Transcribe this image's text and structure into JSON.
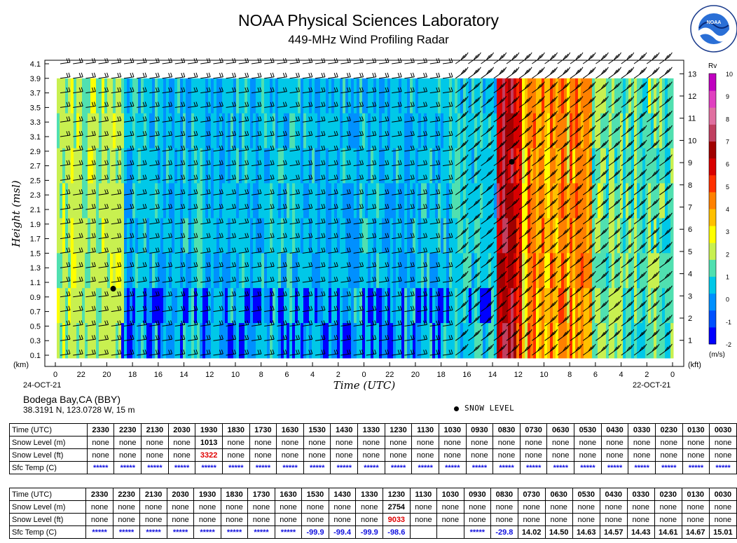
{
  "header": {
    "title": "NOAA Physical Sciences Laboratory",
    "subtitle": "449-MHz Wind Profiling Radar",
    "logo_text": "NATIONAL OCEANIC AND ATMOSPHERIC ADMINISTRATION · U.S. DEPARTMENT OF COMMERCE · NOAA"
  },
  "chart_data": {
    "type": "heatmap",
    "xlabel": "Time (UTC)",
    "ylabel": "Height (msl)",
    "y_unit_left": "(km)",
    "y_unit_right": "(kft)",
    "x_ticks": [
      "0",
      "22",
      "20",
      "18",
      "16",
      "14",
      "12",
      "10",
      "8",
      "6",
      "4",
      "2",
      "0",
      "22",
      "20",
      "18",
      "16",
      "14",
      "12",
      "10",
      "8",
      "6",
      "4",
      "2",
      "0"
    ],
    "date_left": "24-OCT-21",
    "date_right": "22-OCT-21",
    "y_ticks_km": [
      "0.1",
      "0.3",
      "0.5",
      "0.7",
      "0.9",
      "1.1",
      "1.3",
      "1.5",
      "1.7",
      "1.9",
      "2.1",
      "2.3",
      "2.5",
      "2.7",
      "2.9",
      "3.1",
      "3.3",
      "3.5",
      "3.7",
      "3.9",
      "4.1"
    ],
    "y_ticks_kft": [
      "1",
      "2",
      "3",
      "4",
      "5",
      "6",
      "7",
      "8",
      "9",
      "10",
      "11",
      "12",
      "13"
    ],
    "colorbar": {
      "title": "Rv",
      "unit": "(m/s)",
      "ticks": [
        "-2",
        "-1",
        "0",
        "1",
        "2",
        "3",
        "4",
        "5",
        "6",
        "7",
        "8",
        "9",
        "10"
      ],
      "colors": [
        "#0000ff",
        "#0050ff",
        "#0090ff",
        "#00c8e8",
        "#50e0b0",
        "#c8f050",
        "#ffff00",
        "#ffc000",
        "#ff8000",
        "#ff3000",
        "#d80000",
        "#a00000",
        "#c04060",
        "#e070a0",
        "#e040c0",
        "#c000c0"
      ]
    },
    "snow_level_points": [
      {
        "time": "1930",
        "date": "23-OCT-21",
        "height_km": 1.013
      },
      {
        "time": "1230",
        "date": "22-OCT-21",
        "height_km": 2.754
      }
    ],
    "regions": [
      {
        "label": "background",
        "rv": 0
      },
      {
        "label": "rain-band-left",
        "rv": 2
      },
      {
        "label": "rain-band-right",
        "rv": 5
      }
    ]
  },
  "station": {
    "name": "Bodega Bay,CA (BBY)",
    "coords": "38.3191 N, 123.0728 W, 15 m"
  },
  "legend": {
    "snow_level": "SNOW LEVEL"
  },
  "tables": {
    "row_labels": [
      "Time (UTC)",
      "Snow Level (m)",
      "Snow Level (ft)",
      "Sfc Temp (C)"
    ],
    "times": [
      "2330",
      "2230",
      "2130",
      "2030",
      "1930",
      "1830",
      "1730",
      "1630",
      "1530",
      "1430",
      "1330",
      "1230",
      "1130",
      "1030",
      "0930",
      "0830",
      "0730",
      "0630",
      "0530",
      "0430",
      "0330",
      "0230",
      "0130",
      "0030"
    ],
    "table1": {
      "snow_m": [
        "none",
        "none",
        "none",
        "none",
        "1013",
        "none",
        "none",
        "none",
        "none",
        "none",
        "none",
        "none",
        "none",
        "none",
        "none",
        "none",
        "none",
        "none",
        "none",
        "none",
        "none",
        "none",
        "none",
        "none"
      ],
      "snow_ft": [
        "none",
        "none",
        "none",
        "none",
        "3322",
        "none",
        "none",
        "none",
        "none",
        "none",
        "none",
        "none",
        "none",
        "none",
        "none",
        "none",
        "none",
        "none",
        "none",
        "none",
        "none",
        "none",
        "none",
        "none"
      ],
      "sfc": [
        "*****",
        "*****",
        "*****",
        "*****",
        "*****",
        "*****",
        "*****",
        "*****",
        "*****",
        "*****",
        "*****",
        "*****",
        "*****",
        "*****",
        "*****",
        "*****",
        "*****",
        "*****",
        "*****",
        "*****",
        "*****",
        "*****",
        "*****",
        "*****"
      ]
    },
    "table2": {
      "snow_m": [
        "none",
        "none",
        "none",
        "none",
        "none",
        "none",
        "none",
        "none",
        "none",
        "none",
        "none",
        "2754",
        "none",
        "none",
        "none",
        "none",
        "none",
        "none",
        "none",
        "none",
        "none",
        "none",
        "none",
        "none"
      ],
      "snow_ft": [
        "none",
        "none",
        "none",
        "none",
        "none",
        "none",
        "none",
        "none",
        "none",
        "none",
        "none",
        "9033",
        "none",
        "none",
        "none",
        "none",
        "none",
        "none",
        "none",
        "none",
        "none",
        "none",
        "none",
        "none"
      ],
      "sfc": [
        "*****",
        "*****",
        "*****",
        "*****",
        "*****",
        "*****",
        "*****",
        "*****",
        "-99.9",
        "-99.4",
        "-99.9",
        "-98.6",
        "",
        "",
        "*****",
        "-29.8",
        "14.02",
        "14.50",
        "14.63",
        "14.57",
        "14.43",
        "14.61",
        "14.67",
        "15.01"
      ]
    }
  }
}
